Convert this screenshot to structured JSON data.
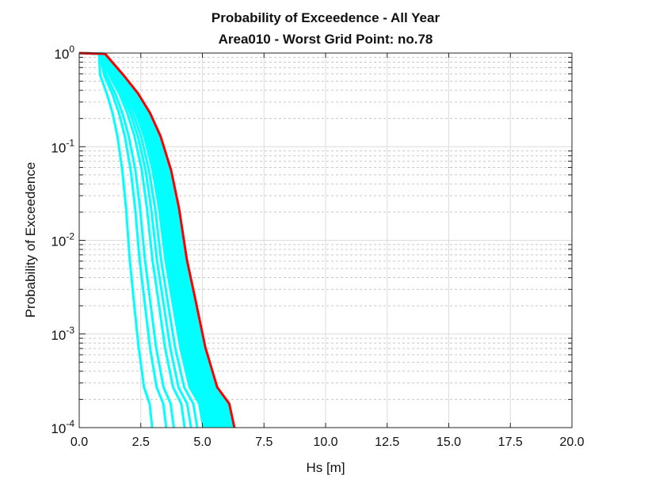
{
  "chart_data": {
    "type": "line",
    "title": "Probability of Exceedence - All Year",
    "subtitle": "Area010 - Worst Grid Point: no.78",
    "xlabel": "Hs [m]",
    "ylabel": "Probability of Exceedence",
    "xlim": [
      0,
      20
    ],
    "ylim": [
      0.0001,
      1
    ],
    "yscale": "log",
    "grid": true,
    "x_ticks": [
      "0.0",
      "2.5",
      "5.0",
      "7.5",
      "10.0",
      "12.5",
      "15.0",
      "17.5",
      "20.0"
    ],
    "y_ticks": [
      {
        "base": "10",
        "exp": "0"
      },
      {
        "base": "10",
        "exp": "-1"
      },
      {
        "base": "10",
        "exp": "-2"
      },
      {
        "base": "10",
        "exp": "-3"
      },
      {
        "base": "10",
        "exp": "-4"
      }
    ],
    "p_levels": [
      1,
      0.98,
      0.58,
      0.37,
      0.23,
      0.13,
      0.056,
      0.022,
      0.0062,
      0.0025,
      0.00072,
      0.00027,
      0.00018,
      0.0001
    ],
    "worst_point": {
      "name": "Grid point no.78",
      "color": "#ff0000",
      "x": [
        0,
        1.05,
        1.8,
        2.39,
        2.87,
        3.3,
        3.73,
        4.05,
        4.37,
        4.69,
        5.12,
        5.6,
        6.09,
        6.3
      ]
    },
    "other_points": {
      "color": "#00ffff",
      "series": [
        {
          "x": [
            0,
            0.8,
            0.85,
            1.12,
            1.35,
            1.55,
            1.75,
            1.9,
            2.05,
            2.2,
            2.41,
            2.63,
            2.86,
            2.96
          ]
        },
        {
          "x": [
            0,
            0.85,
            1.01,
            1.34,
            1.61,
            1.85,
            2.09,
            2.27,
            2.45,
            2.63,
            2.87,
            3.14,
            3.41,
            3.53
          ]
        },
        {
          "x": [
            0,
            0.88,
            1.1,
            1.46,
            1.75,
            2.01,
            2.28,
            2.47,
            2.67,
            2.86,
            3.12,
            3.42,
            3.71,
            3.84
          ]
        },
        {
          "x": [
            0,
            0.9,
            1.22,
            1.63,
            1.95,
            2.24,
            2.54,
            2.75,
            2.97,
            3.19,
            3.48,
            3.81,
            4.14,
            4.28
          ]
        },
        {
          "x": [
            0,
            0.92,
            1.3,
            1.72,
            2.07,
            2.38,
            2.69,
            2.92,
            3.15,
            3.38,
            3.69,
            4.03,
            4.38,
            4.54
          ]
        },
        {
          "x": [
            0,
            0.94,
            1.37,
            1.82,
            2.18,
            2.51,
            2.83,
            3.08,
            3.32,
            3.56,
            3.89,
            4.26,
            4.63,
            4.79
          ]
        },
        {
          "x": [
            0,
            0.96,
            1.44,
            1.91,
            2.3,
            2.64,
            2.98,
            3.24,
            3.5,
            3.75,
            4.1,
            4.48,
            4.87,
            5.04
          ]
        },
        {
          "x": [
            0,
            0.98,
            1.51,
            2.01,
            2.41,
            2.77,
            3.13,
            3.4,
            3.67,
            3.94,
            4.3,
            4.7,
            5.12,
            5.29
          ]
        },
        {
          "x": [
            0,
            1.0,
            1.58,
            2.1,
            2.53,
            2.9,
            3.28,
            3.56,
            3.85,
            4.13,
            4.51,
            4.93,
            5.36,
            5.54
          ]
        },
        {
          "x": [
            0,
            1.02,
            1.66,
            2.2,
            2.64,
            3.04,
            3.43,
            3.73,
            4.02,
            4.31,
            4.71,
            5.15,
            5.6,
            5.8
          ]
        },
        {
          "x": [
            0,
            1.03,
            1.71,
            2.27,
            2.73,
            3.14,
            3.54,
            3.85,
            4.15,
            4.46,
            4.86,
            5.32,
            5.79,
            5.99
          ]
        },
        {
          "x": [
            0,
            1.04,
            1.76,
            2.34,
            2.81,
            3.23,
            3.66,
            3.97,
            4.28,
            4.6,
            5.02,
            5.49,
            5.97,
            6.17
          ]
        }
      ]
    }
  }
}
